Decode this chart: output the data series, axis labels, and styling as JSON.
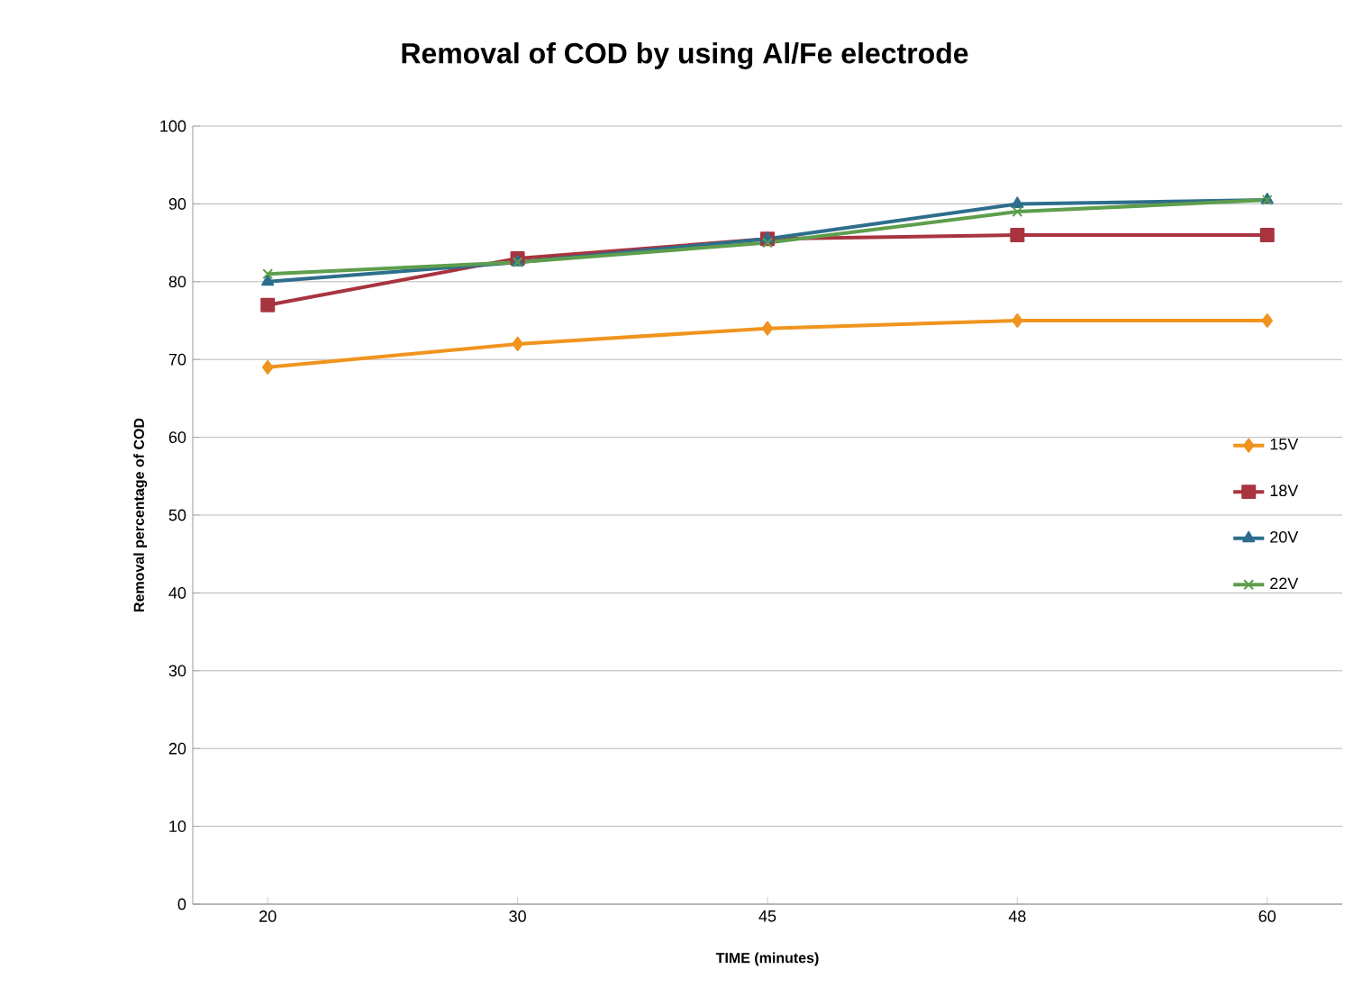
{
  "chart_data": {
    "type": "line",
    "title": "Removal of COD by using Al/Fe electrode",
    "xlabel": "TIME (minutes)",
    "ylabel": "Removal percentage of COD",
    "categories": [
      "20",
      "30",
      "45",
      "48",
      "60"
    ],
    "series": [
      {
        "name": "15V",
        "color": "#f0941e",
        "marker": "diamond",
        "values": [
          69,
          72,
          74,
          75,
          75
        ]
      },
      {
        "name": "18V",
        "color": "#a8343f",
        "marker": "square",
        "values": [
          77,
          83,
          85.5,
          86,
          86
        ]
      },
      {
        "name": "20V",
        "color": "#2d6e8c",
        "marker": "triangle",
        "values": [
          80,
          82.5,
          85.5,
          90,
          90.5
        ]
      },
      {
        "name": "22V",
        "color": "#5e9e4c",
        "marker": "cross",
        "values": [
          81,
          82.5,
          85,
          89,
          90.5
        ]
      }
    ],
    "ylim": [
      0,
      100
    ],
    "yticks": [
      0,
      10,
      20,
      30,
      40,
      50,
      60,
      70,
      80,
      90,
      100
    ],
    "grid": "y",
    "legend": "right"
  }
}
